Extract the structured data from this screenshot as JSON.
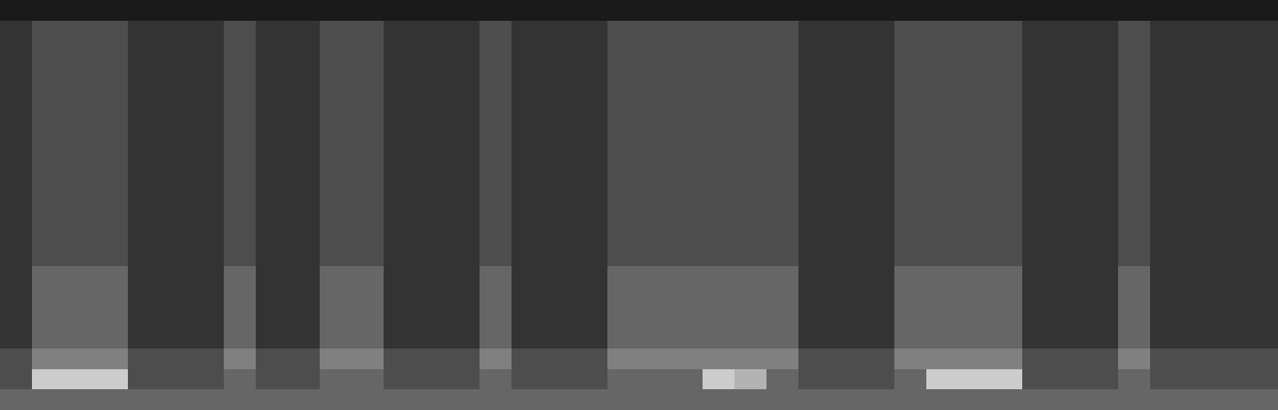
{
  "chart_data": {
    "type": "heatmap",
    "tick_labels": false,
    "zlim": [
      0,
      10
    ],
    "values": [
      [
        1,
        1,
        1,
        1,
        1,
        1,
        1,
        1,
        1,
        1,
        1,
        1,
        1,
        1,
        1,
        1,
        1,
        1,
        1,
        1,
        1,
        1,
        1,
        1,
        1,
        1,
        1,
        1,
        1,
        1,
        1,
        1,
        1,
        1,
        1,
        1,
        1,
        1,
        1,
        1
      ],
      [
        2,
        3,
        3,
        3,
        2,
        2,
        2,
        3,
        2,
        2,
        3,
        3,
        2,
        2,
        2,
        3,
        2,
        2,
        2,
        3,
        3,
        3,
        3,
        3,
        3,
        2,
        2,
        2,
        3,
        3,
        3,
        3,
        2,
        2,
        2,
        3,
        2,
        2,
        2,
        2
      ],
      [
        2,
        3,
        3,
        3,
        2,
        2,
        2,
        3,
        2,
        2,
        3,
        3,
        2,
        2,
        2,
        3,
        2,
        2,
        2,
        3,
        3,
        3,
        3,
        3,
        3,
        2,
        2,
        2,
        3,
        3,
        3,
        3,
        2,
        2,
        2,
        3,
        2,
        2,
        2,
        2
      ],
      [
        2,
        3,
        3,
        3,
        2,
        2,
        2,
        3,
        2,
        2,
        3,
        3,
        2,
        2,
        2,
        3,
        2,
        2,
        2,
        3,
        3,
        3,
        3,
        3,
        3,
        2,
        2,
        2,
        3,
        3,
        3,
        3,
        2,
        2,
        2,
        3,
        2,
        2,
        2,
        2
      ],
      [
        2,
        3,
        3,
        3,
        2,
        2,
        2,
        3,
        2,
        2,
        3,
        3,
        2,
        2,
        2,
        3,
        2,
        2,
        2,
        3,
        3,
        3,
        3,
        3,
        3,
        2,
        2,
        2,
        3,
        3,
        3,
        3,
        2,
        2,
        2,
        3,
        2,
        2,
        2,
        2
      ],
      [
        2,
        3,
        3,
        3,
        2,
        2,
        2,
        3,
        2,
        2,
        3,
        3,
        2,
        2,
        2,
        3,
        2,
        2,
        2,
        3,
        3,
        3,
        3,
        3,
        3,
        2,
        2,
        2,
        3,
        3,
        3,
        3,
        2,
        2,
        2,
        3,
        2,
        2,
        2,
        2
      ],
      [
        2,
        3,
        3,
        3,
        2,
        2,
        2,
        3,
        2,
        2,
        3,
        3,
        2,
        2,
        2,
        3,
        2,
        2,
        2,
        3,
        3,
        3,
        3,
        3,
        3,
        2,
        2,
        2,
        3,
        3,
        3,
        3,
        2,
        2,
        2,
        3,
        2,
        2,
        2,
        2
      ],
      [
        2,
        3,
        3,
        3,
        2,
        2,
        2,
        3,
        2,
        2,
        3,
        3,
        2,
        2,
        2,
        3,
        2,
        2,
        2,
        3,
        3,
        3,
        3,
        3,
        3,
        2,
        2,
        2,
        3,
        3,
        3,
        3,
        2,
        2,
        2,
        3,
        2,
        2,
        2,
        2
      ],
      [
        2,
        3,
        3,
        3,
        2,
        2,
        2,
        3,
        2,
        2,
        3,
        3,
        2,
        2,
        2,
        3,
        2,
        2,
        2,
        3,
        3,
        3,
        3,
        3,
        3,
        2,
        2,
        2,
        3,
        3,
        3,
        3,
        2,
        2,
        2,
        3,
        2,
        2,
        2,
        2
      ],
      [
        2,
        3,
        3,
        3,
        2,
        2,
        2,
        3,
        2,
        2,
        3,
        3,
        2,
        2,
        2,
        3,
        2,
        2,
        2,
        3,
        3,
        3,
        3,
        3,
        3,
        2,
        2,
        2,
        3,
        3,
        3,
        3,
        2,
        2,
        2,
        3,
        2,
        2,
        2,
        2
      ],
      [
        2,
        3,
        3,
        3,
        2,
        2,
        2,
        3,
        2,
        2,
        3,
        3,
        2,
        2,
        2,
        3,
        2,
        2,
        2,
        3,
        3,
        3,
        3,
        3,
        3,
        2,
        2,
        2,
        3,
        3,
        3,
        3,
        2,
        2,
        2,
        3,
        2,
        2,
        2,
        2
      ],
      [
        2,
        3,
        3,
        3,
        2,
        2,
        2,
        3,
        2,
        2,
        3,
        3,
        2,
        2,
        2,
        3,
        2,
        2,
        2,
        3,
        3,
        3,
        3,
        3,
        3,
        2,
        2,
        2,
        3,
        3,
        3,
        3,
        2,
        2,
        2,
        3,
        2,
        2,
        2,
        2
      ],
      [
        2,
        3,
        3,
        3,
        2,
        2,
        2,
        3,
        2,
        2,
        3,
        3,
        2,
        2,
        2,
        3,
        2,
        2,
        2,
        3,
        3,
        3,
        3,
        3,
        3,
        2,
        2,
        2,
        3,
        3,
        3,
        3,
        2,
        2,
        2,
        3,
        2,
        2,
        2,
        2
      ],
      [
        2,
        4,
        4,
        4,
        2,
        2,
        2,
        4,
        2,
        2,
        4,
        4,
        2,
        2,
        2,
        4,
        2,
        2,
        2,
        4,
        4,
        4,
        4,
        4,
        4,
        2,
        2,
        2,
        4,
        4,
        4,
        4,
        2,
        2,
        2,
        4,
        2,
        2,
        2,
        2
      ],
      [
        2,
        4,
        4,
        4,
        2,
        2,
        2,
        4,
        2,
        2,
        4,
        4,
        2,
        2,
        2,
        4,
        2,
        2,
        2,
        4,
        4,
        4,
        4,
        4,
        4,
        2,
        2,
        2,
        4,
        4,
        4,
        4,
        2,
        2,
        2,
        4,
        2,
        2,
        2,
        2
      ],
      [
        2,
        4,
        4,
        4,
        2,
        2,
        2,
        4,
        2,
        2,
        4,
        4,
        2,
        2,
        2,
        4,
        2,
        2,
        2,
        4,
        4,
        4,
        4,
        4,
        4,
        2,
        2,
        2,
        4,
        4,
        4,
        4,
        2,
        2,
        2,
        4,
        2,
        2,
        2,
        2
      ],
      [
        2,
        4,
        4,
        4,
        2,
        2,
        2,
        4,
        2,
        2,
        4,
        4,
        2,
        2,
        2,
        4,
        2,
        2,
        2,
        4,
        4,
        4,
        4,
        4,
        4,
        2,
        2,
        2,
        4,
        4,
        4,
        4,
        2,
        2,
        2,
        4,
        2,
        2,
        2,
        2
      ],
      [
        3,
        5,
        5,
        5,
        3,
        3,
        3,
        5,
        3,
        3,
        5,
        5,
        3,
        3,
        3,
        5,
        3,
        3,
        3,
        5,
        5,
        5,
        5,
        5,
        5,
        3,
        3,
        3,
        5,
        5,
        5,
        5,
        3,
        3,
        3,
        5,
        3,
        3,
        3,
        3
      ],
      [
        3,
        8,
        8,
        8,
        3,
        3,
        3,
        4,
        3,
        3,
        4,
        4,
        3,
        3,
        3,
        4,
        3,
        3,
        3,
        4,
        4,
        4,
        8,
        7,
        4,
        3,
        3,
        3,
        4,
        8,
        8,
        8,
        3,
        3,
        3,
        4,
        3,
        3,
        3,
        3
      ],
      [
        4,
        4,
        4,
        4,
        4,
        4,
        4,
        4,
        4,
        4,
        4,
        4,
        4,
        4,
        4,
        4,
        4,
        4,
        4,
        4,
        4,
        4,
        4,
        4,
        4,
        4,
        4,
        4,
        4,
        4,
        4,
        4,
        4,
        4,
        4,
        4,
        4,
        4,
        4,
        4
      ]
    ]
  }
}
